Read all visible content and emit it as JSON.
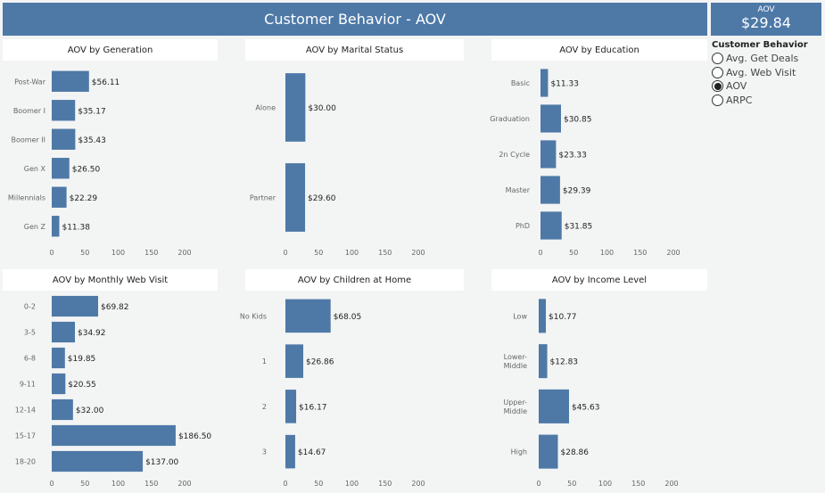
{
  "header": {
    "title": "Customer Behavior - AOV"
  },
  "kpi": {
    "label": "AOV",
    "value": "$29.84"
  },
  "filter": {
    "title": "Customer Behavior",
    "options": [
      {
        "label": "Avg. Get Deals",
        "selected": false
      },
      {
        "label": "Avg. Web Visit",
        "selected": false
      },
      {
        "label": "AOV",
        "selected": true
      },
      {
        "label": "ARPC",
        "selected": false
      }
    ]
  },
  "colors": {
    "bar": "#4e79a7",
    "header": "#4e79a7",
    "background": "#f3f4f4"
  },
  "chart_data": [
    {
      "type": "bar",
      "orientation": "horizontal",
      "title": "AOV by Generation",
      "categories": [
        "Post-War",
        "Boomer I",
        "Boomer II",
        "Gen X",
        "Millennials",
        "Gen Z"
      ],
      "values": [
        56.11,
        35.17,
        35.43,
        26.5,
        22.29,
        11.38
      ],
      "labels": [
        "$56.11",
        "$35.17",
        "$35.43",
        "$26.50",
        "$22.29",
        "$11.38"
      ],
      "xlim": [
        0,
        200
      ],
      "xticks": [
        "0",
        "50",
        "100",
        "150",
        "200"
      ]
    },
    {
      "type": "bar",
      "orientation": "horizontal",
      "title": "AOV by Marital Status",
      "categories": [
        "Alone",
        "Partner"
      ],
      "values": [
        30.0,
        29.6
      ],
      "labels": [
        "$30.00",
        "$29.60"
      ],
      "xlim": [
        0,
        200
      ],
      "xticks": [
        "0",
        "50",
        "100",
        "150",
        "200"
      ]
    },
    {
      "type": "bar",
      "orientation": "horizontal",
      "title": "AOV by Education",
      "categories": [
        "Basic",
        "Graduation",
        "2n Cycle",
        "Master",
        "PhD"
      ],
      "values": [
        11.33,
        30.85,
        23.33,
        29.39,
        31.85
      ],
      "labels": [
        "$11.33",
        "$30.85",
        "$23.33",
        "$29.39",
        "$31.85"
      ],
      "xlim": [
        0,
        200
      ],
      "xticks": [
        "0",
        "50",
        "100",
        "150",
        "200"
      ]
    },
    {
      "type": "bar",
      "orientation": "horizontal",
      "title": "AOV by Monthly Web Visit",
      "categories": [
        "0-2",
        "3-5",
        "6-8",
        "9-11",
        "12-14",
        "15-17",
        "18-20"
      ],
      "values": [
        69.82,
        34.92,
        19.85,
        20.55,
        32.0,
        186.5,
        137.0
      ],
      "labels": [
        "$69.82",
        "$34.92",
        "$19.85",
        "$20.55",
        "$32.00",
        "$186.50",
        "$137.00"
      ],
      "xlim": [
        0,
        200
      ],
      "xticks": [
        "0",
        "50",
        "100",
        "150",
        "200"
      ]
    },
    {
      "type": "bar",
      "orientation": "horizontal",
      "title": "AOV by Children at Home",
      "categories": [
        "No Kids",
        "1",
        "2",
        "3"
      ],
      "values": [
        68.05,
        26.86,
        16.17,
        14.67
      ],
      "labels": [
        "$68.05",
        "$26.86",
        "$16.17",
        "$14.67"
      ],
      "xlim": [
        0,
        200
      ],
      "xticks": [
        "0",
        "50",
        "100",
        "150",
        "200"
      ]
    },
    {
      "type": "bar",
      "orientation": "horizontal",
      "title": "AOV by Income Level",
      "categories": [
        [
          "Low"
        ],
        [
          "Lower-",
          "Middle"
        ],
        [
          "Upper-",
          "Middle"
        ],
        [
          "High"
        ]
      ],
      "values": [
        10.77,
        12.83,
        45.63,
        28.86
      ],
      "labels": [
        "$10.77",
        "$12.83",
        "$45.63",
        "$28.86"
      ],
      "xlim": [
        0,
        200
      ],
      "xticks": [
        "0",
        "50",
        "100",
        "150",
        "200"
      ]
    }
  ]
}
